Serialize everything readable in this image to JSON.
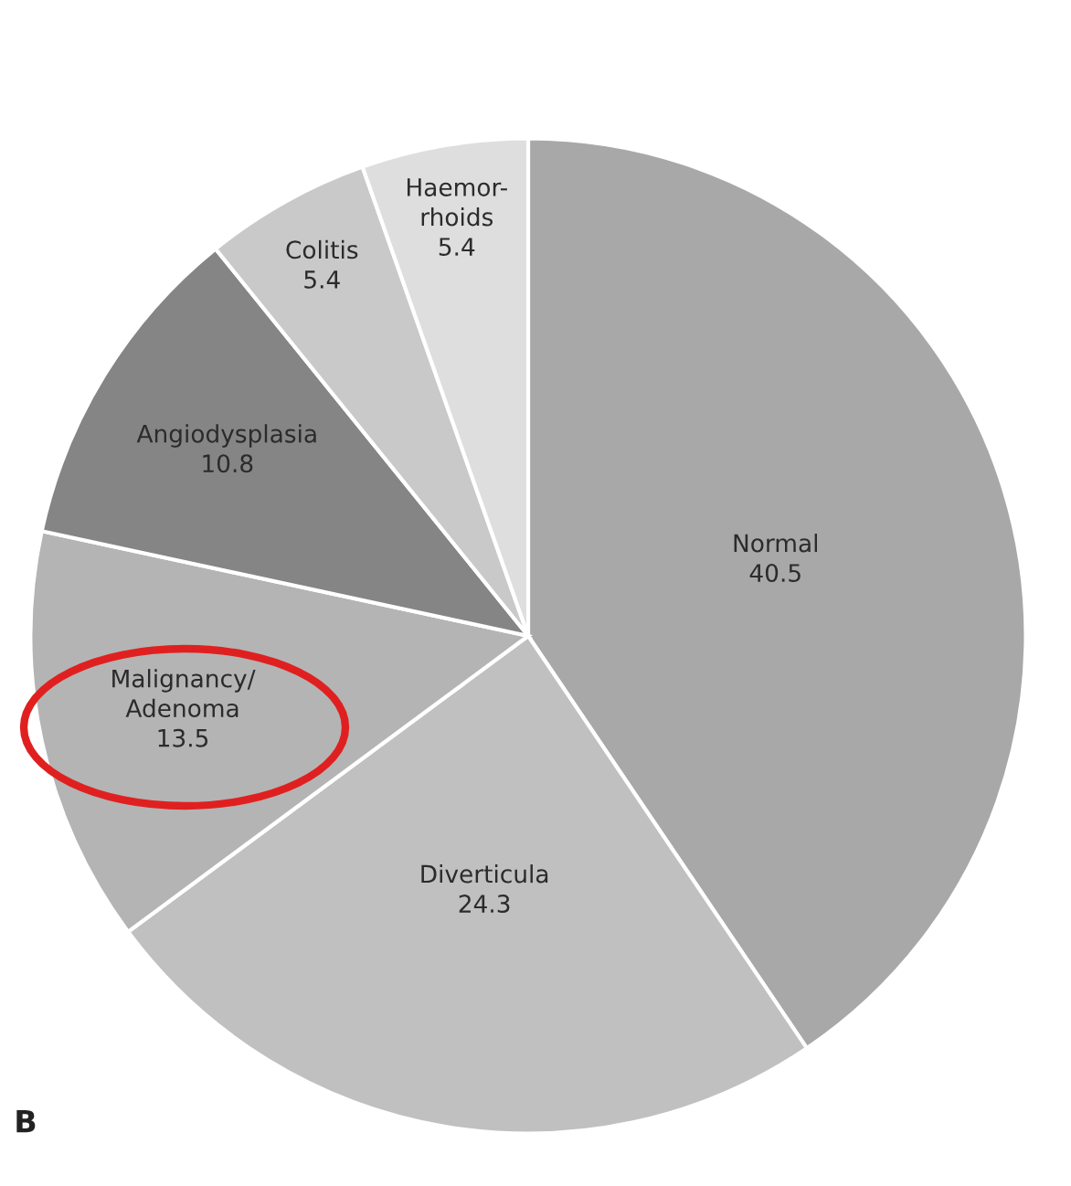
{
  "chart_data": {
    "type": "pie",
    "categories": [
      "Normal",
      "Diverticula",
      "Malignancy/\nAdenoma",
      "Angiodysplasia",
      "Colitis",
      "Haemor-\nrhoids"
    ],
    "values": [
      40.5,
      24.3,
      13.5,
      10.8,
      5.4,
      5.4
    ],
    "colors": [
      "#a8a8a8",
      "#c0c0c0",
      "#b4b4b4",
      "#858585",
      "#c9c9c9",
      "#dedede"
    ],
    "data_labels": true,
    "annotations": [
      "B"
    ]
  }
}
